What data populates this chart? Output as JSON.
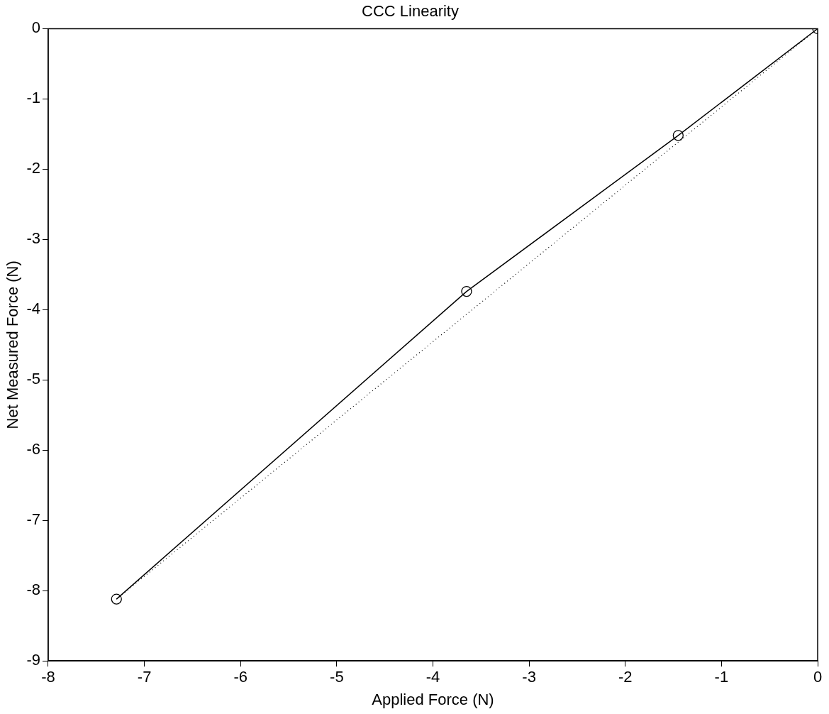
{
  "chart_data": {
    "type": "line",
    "title": "CCC Linearity",
    "xlabel": "Applied Force (N)",
    "ylabel": "Net Measured Force (N)",
    "x": [
      -7.29,
      -3.65,
      -1.45,
      0
    ],
    "series": [
      {
        "color": "#000000",
        "values": [
          -8.12,
          -3.74,
          -1.52,
          0
        ],
        "marker": "circle",
        "line_style": "solid"
      },
      {
        "x": [
          -7.29,
          0
        ],
        "color": "#000000",
        "values": [
          -8.12,
          0
        ],
        "marker": "none",
        "line_style": "dotted"
      }
    ],
    "xlim": [
      -8,
      0
    ],
    "xticks": [
      -8,
      -7,
      -6,
      -5,
      -4,
      -3,
      -2,
      -1,
      0
    ],
    "ylim": [
      -9,
      0
    ],
    "yticks": [
      -9,
      -8,
      -7,
      -6,
      -5,
      -4,
      -3,
      -2,
      -1,
      0
    ],
    "grid": false,
    "legend": false
  }
}
